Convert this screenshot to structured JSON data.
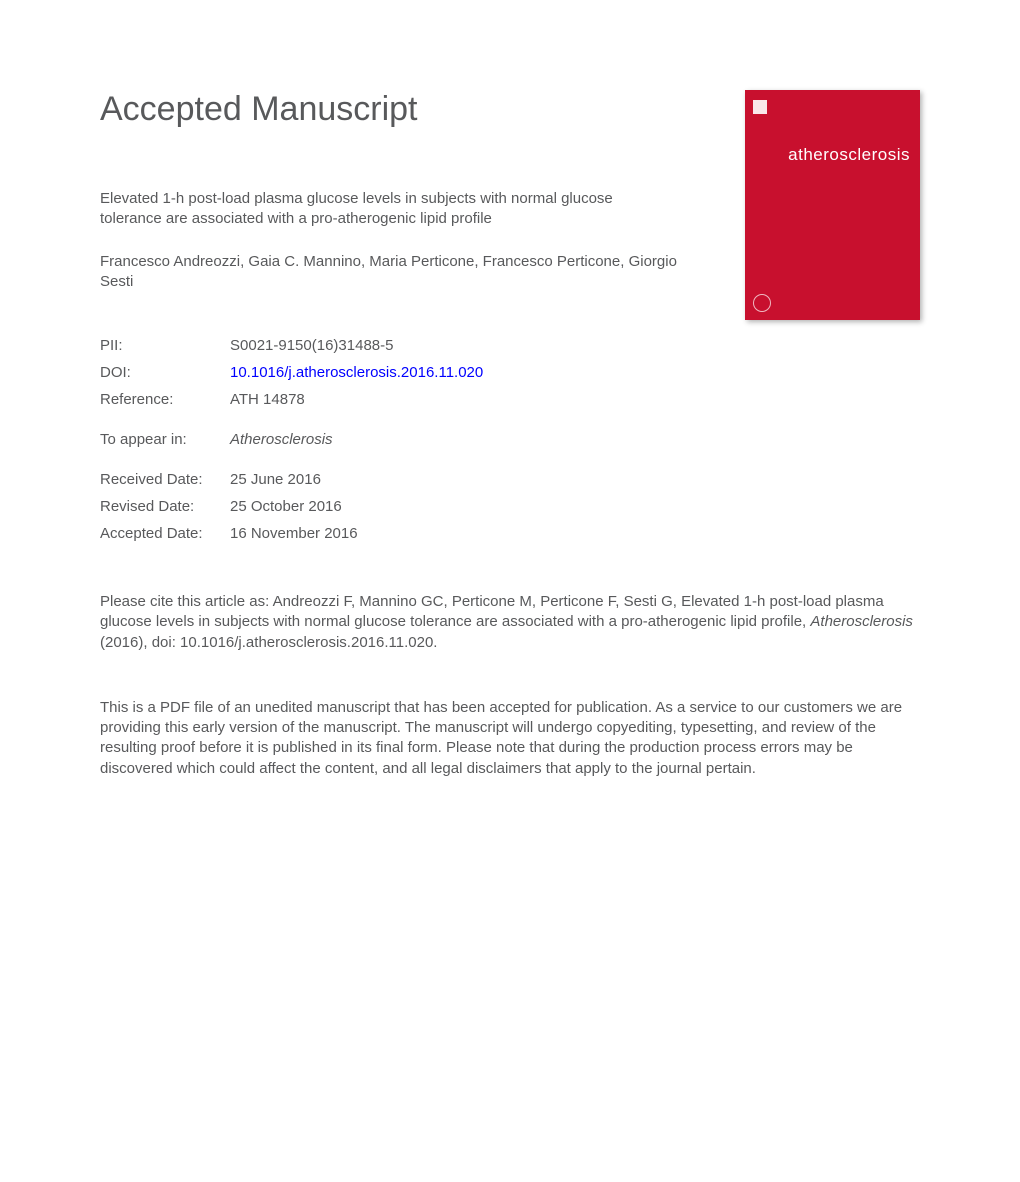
{
  "heading": "Accepted Manuscript",
  "cover": {
    "journal_title": "atherosclerosis",
    "background_color": "#c8102e",
    "title_color": "#ffffff"
  },
  "article": {
    "title": "Elevated 1-h post-load plasma glucose levels in subjects with normal glucose tolerance are associated with a pro-atherogenic lipid profile",
    "authors": "Francesco Andreozzi, Gaia C. Mannino, Maria Perticone, Francesco Perticone, Giorgio Sesti"
  },
  "meta": {
    "pii_label": "PII:",
    "pii_value": "S0021-9150(16)31488-5",
    "doi_label": "DOI:",
    "doi_value": "10.1016/j.atherosclerosis.2016.11.020",
    "reference_label": "Reference:",
    "reference_value": "ATH 14878",
    "appear_label": "To appear in:",
    "appear_value": "Atherosclerosis",
    "received_label": "Received Date:",
    "received_value": "25 June 2016",
    "revised_label": "Revised Date:",
    "revised_value": "25 October 2016",
    "accepted_label": "Accepted Date:",
    "accepted_value": "16 November 2016"
  },
  "citation": {
    "prefix": "Please cite this article as: Andreozzi F, Mannino GC, Perticone M, Perticone F, Sesti G, Elevated 1-h post-load plasma glucose levels in subjects with normal glucose tolerance are associated with a pro-atherogenic lipid profile, ",
    "journal": "Atherosclerosis",
    "suffix": " (2016), doi: 10.1016/j.atherosclerosis.2016.11.020."
  },
  "disclaimer": "This is a PDF file of an unedited manuscript that has been accepted for publication. As a service to our customers we are providing this early version of the manuscript. The manuscript will undergo copyediting, typesetting, and review of the resulting proof before it is published in its final form. Please note that during the production process errors may be discovered which could affect the content, and all legal disclaimers that apply to the journal pertain.",
  "colors": {
    "text": "#58595b",
    "link": "#0000ff",
    "background": "#ffffff"
  },
  "typography": {
    "heading_fontsize": 34,
    "body_fontsize": 15,
    "font_family": "Arial"
  }
}
